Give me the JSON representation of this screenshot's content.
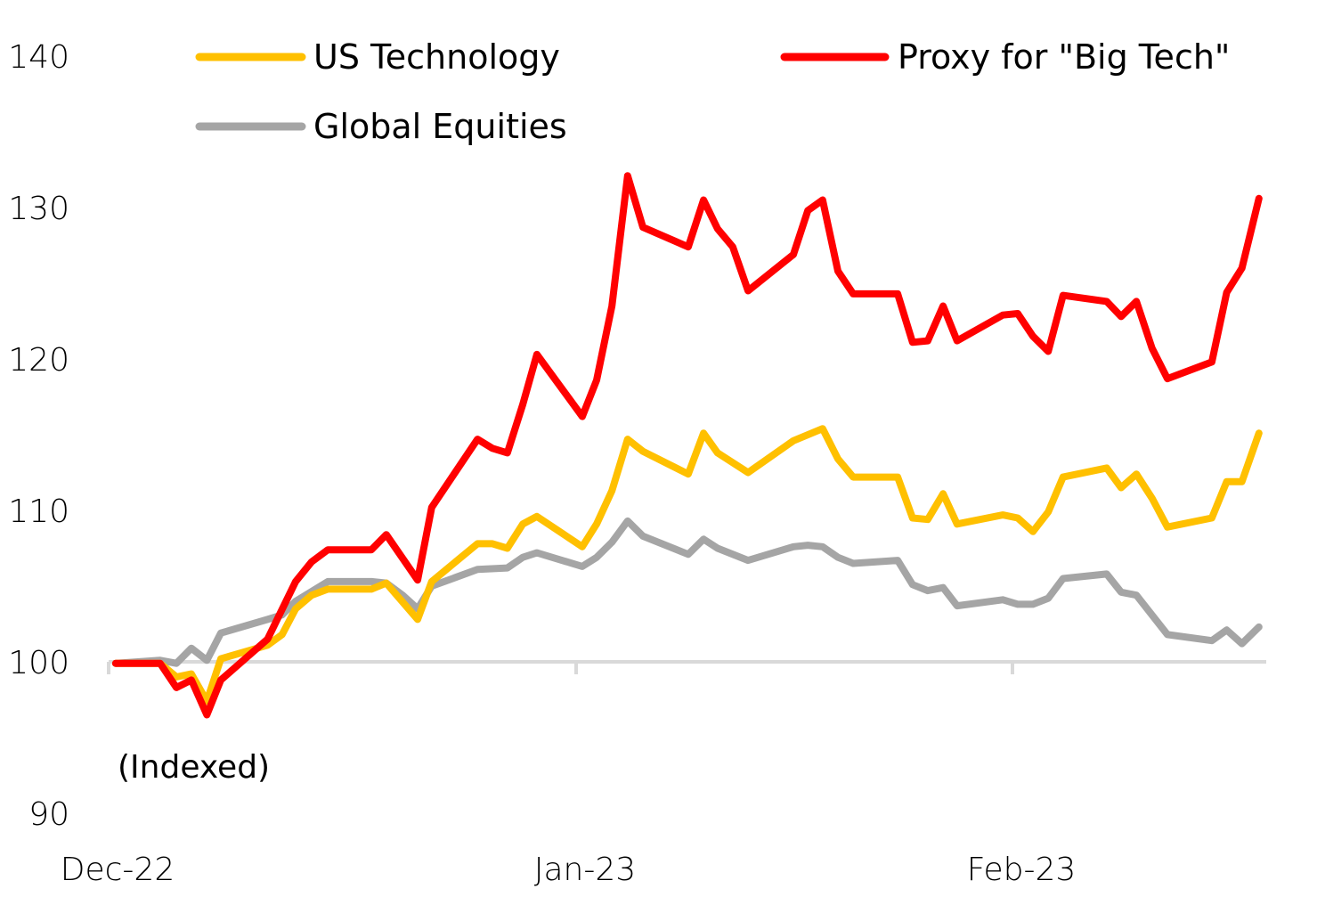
{
  "chart_data": {
    "type": "line",
    "title": "",
    "xlabel": "",
    "ylabel": "",
    "annotation": "(Indexed)",
    "ylim": [
      90,
      140
    ],
    "yticks": [
      90,
      100,
      110,
      120,
      130,
      140
    ],
    "ytick_labels": [
      "90",
      "100",
      "110",
      "120",
      "130",
      "140"
    ],
    "xlim": [
      0,
      2.58
    ],
    "xticks": [
      0,
      1,
      2
    ],
    "xtick_labels": [
      "Dec-22",
      "Jan-23",
      "Feb-23"
    ],
    "baseline": 100,
    "grid": false,
    "legend": {
      "placement": "top",
      "entries": [
        "US Technology",
        "Proxy for \"Big Tech\"",
        "Global Equities"
      ]
    },
    "series": [
      {
        "name": "Proxy for \"Big Tech\"",
        "color": "#ff0000",
        "x": [
          0.015,
          0.11,
          0.145,
          0.177,
          0.21,
          0.24,
          0.34,
          0.4,
          0.434,
          0.469,
          0.562,
          0.594,
          0.661,
          0.691,
          0.789,
          0.821,
          0.853,
          0.886,
          0.916,
          1.014,
          1.047,
          1.082,
          1.118,
          1.153,
          1.257,
          1.292,
          1.324,
          1.359,
          1.394,
          1.498,
          1.531,
          1.565,
          1.6,
          1.635,
          1.737,
          1.771,
          1.806,
          1.841,
          1.873,
          1.978,
          2.012,
          2.047,
          2.082,
          2.116,
          2.216,
          2.249,
          2.284,
          2.32,
          2.355,
          2.457,
          2.491,
          2.526,
          2.565
        ],
        "values": [
          99.9,
          99.9,
          98.3,
          98.8,
          96.5,
          98.8,
          101.5,
          105.3,
          106.6,
          107.4,
          107.4,
          108.4,
          105.4,
          110.2,
          114.7,
          114.1,
          113.8,
          117.0,
          120.3,
          116.2,
          118.6,
          123.5,
          132.1,
          128.7,
          127.4,
          130.5,
          128.6,
          127.4,
          124.5,
          126.9,
          129.8,
          130.5,
          125.8,
          124.3,
          124.3,
          121.1,
          121.2,
          123.5,
          121.2,
          122.9,
          123.0,
          121.5,
          120.5,
          124.2,
          123.8,
          122.8,
          123.8,
          120.7,
          118.7,
          119.8,
          124.4,
          126.0,
          130.6
        ]
      },
      {
        "name": "US Technology",
        "color": "#ffc000",
        "x": [
          0.015,
          0.11,
          0.145,
          0.177,
          0.21,
          0.24,
          0.34,
          0.371,
          0.4,
          0.434,
          0.469,
          0.562,
          0.594,
          0.661,
          0.691,
          0.789,
          0.821,
          0.853,
          0.886,
          0.916,
          1.014,
          1.047,
          1.082,
          1.118,
          1.153,
          1.257,
          1.292,
          1.324,
          1.394,
          1.498,
          1.565,
          1.6,
          1.635,
          1.737,
          1.771,
          1.806,
          1.841,
          1.873,
          1.978,
          2.012,
          2.047,
          2.082,
          2.116,
          2.216,
          2.249,
          2.284,
          2.32,
          2.355,
          2.457,
          2.491,
          2.526,
          2.565
        ],
        "values": [
          99.9,
          99.9,
          99.0,
          99.2,
          97.4,
          100.2,
          101.1,
          101.8,
          103.5,
          104.4,
          104.8,
          104.8,
          105.2,
          102.8,
          105.3,
          107.8,
          107.8,
          107.5,
          109.1,
          109.6,
          107.6,
          109.1,
          111.3,
          114.7,
          113.9,
          112.4,
          115.1,
          113.8,
          112.5,
          114.6,
          115.4,
          113.4,
          112.2,
          112.2,
          109.5,
          109.4,
          111.1,
          109.1,
          109.7,
          109.5,
          108.6,
          109.9,
          112.2,
          112.8,
          111.5,
          112.4,
          110.8,
          108.9,
          109.5,
          111.9,
          111.9,
          115.1
        ]
      },
      {
        "name": "Global Equities",
        "color": "#a5a5a5",
        "x": [
          0.015,
          0.11,
          0.145,
          0.177,
          0.21,
          0.24,
          0.34,
          0.371,
          0.4,
          0.469,
          0.562,
          0.594,
          0.629,
          0.661,
          0.691,
          0.789,
          0.853,
          0.886,
          0.916,
          1.014,
          1.047,
          1.082,
          1.118,
          1.153,
          1.257,
          1.292,
          1.324,
          1.394,
          1.498,
          1.531,
          1.565,
          1.6,
          1.635,
          1.737,
          1.771,
          1.806,
          1.841,
          1.873,
          1.978,
          2.012,
          2.047,
          2.082,
          2.116,
          2.216,
          2.249,
          2.284,
          2.355,
          2.457,
          2.491,
          2.526,
          2.565
        ],
        "values": [
          99.9,
          100.1,
          99.9,
          100.9,
          100.1,
          101.9,
          102.8,
          103.1,
          104.0,
          105.3,
          105.3,
          105.2,
          104.4,
          103.5,
          105.0,
          106.1,
          106.2,
          106.9,
          107.2,
          106.3,
          106.9,
          107.9,
          109.3,
          108.3,
          107.1,
          108.1,
          107.5,
          106.7,
          107.6,
          107.7,
          107.6,
          106.9,
          106.5,
          106.7,
          105.1,
          104.7,
          104.9,
          103.7,
          104.1,
          103.8,
          103.8,
          104.2,
          105.5,
          105.8,
          104.6,
          104.4,
          101.8,
          101.4,
          102.1,
          101.2,
          102.3
        ]
      }
    ]
  }
}
